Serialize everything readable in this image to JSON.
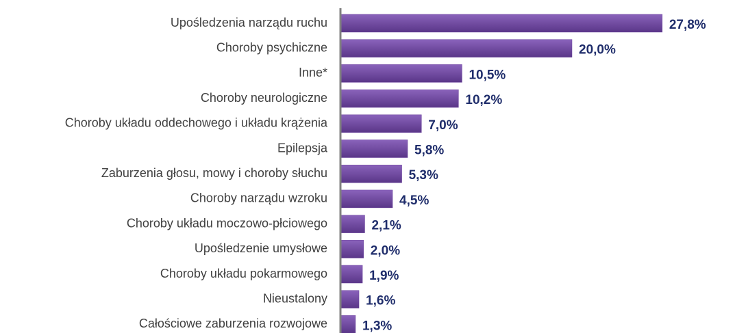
{
  "chart_data": {
    "type": "hbar",
    "categories": [
      "Upośledzenia narządu ruchu",
      "Choroby psychiczne",
      "Inne*",
      "Choroby neurologiczne",
      "Choroby układu oddechowego i układu krążenia",
      "Epilepsja",
      "Zaburzenia głosu, mowy i choroby słuchu",
      "Choroby narządu wzroku",
      "Choroby układu moczowo-płciowego",
      "Upośledzenie umysłowe",
      "Choroby układu pokarmowego",
      "Nieustalony",
      "Całościowe zaburzenia rozwojowe"
    ],
    "values": [
      27.8,
      20.0,
      10.5,
      10.2,
      7.0,
      5.8,
      5.3,
      4.5,
      2.1,
      2.0,
      1.9,
      1.6,
      1.3
    ],
    "value_labels": [
      "27,8%",
      "20,0%",
      "10,5%",
      "10,2%",
      "7,0%",
      "5,8%",
      "5,3%",
      "4,5%",
      "2,1%",
      "2,0%",
      "1,9%",
      "1,6%",
      "1,3%"
    ],
    "color": "#6f47a0",
    "xlim": [
      0,
      30
    ]
  }
}
